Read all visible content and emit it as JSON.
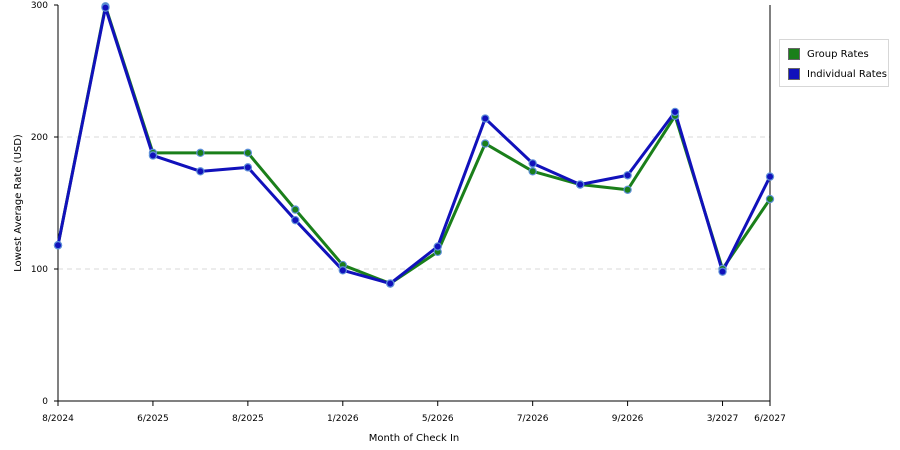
{
  "chart_data": {
    "type": "line",
    "xlabel": "Month of Check In",
    "ylabel": "Lowest Average Rate (USD)",
    "ylim": [
      0,
      300
    ],
    "y_ticks": [
      0,
      100,
      200,
      300
    ],
    "grid": "horizontal dashed at 100 and 200",
    "legend_position": "right-top",
    "x_tick_labels": [
      "8/2024",
      "6/2025",
      "8/2025",
      "1/2026",
      "5/2026",
      "7/2026",
      "9/2026",
      "3/2027",
      "6/2027"
    ],
    "x_tick_indices": [
      0,
      2,
      4,
      6,
      8,
      10,
      12,
      14,
      15
    ],
    "series": [
      {
        "name": "Group Rates",
        "color": "#1a7f1a",
        "values": [
          118,
          299,
          188,
          188,
          188,
          145,
          103,
          89,
          113,
          195,
          174,
          164,
          160,
          216,
          100,
          153
        ]
      },
      {
        "name": "Individual Rates",
        "color": "#1111bb",
        "values": [
          118,
          298,
          186,
          174,
          177,
          137,
          99,
          89,
          117,
          214,
          180,
          164,
          171,
          219,
          98,
          170
        ]
      }
    ]
  }
}
